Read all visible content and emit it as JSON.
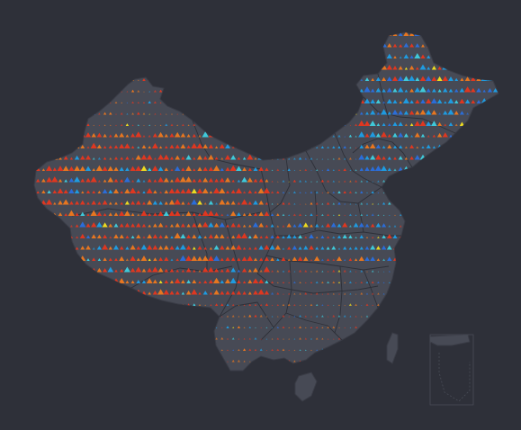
{
  "map": {
    "region": "China",
    "background": "#2e3039",
    "land_color": "#474a55",
    "border_color": "#2b2d35",
    "marker_shape": "triangle",
    "marker_palette": [
      "#e8361e",
      "#f0781e",
      "#1e9fe8",
      "#2a6fe0",
      "#3fd0e0",
      "#f5e21e"
    ],
    "has_south_china_sea_inset": true,
    "has_legend": false,
    "has_title": false
  }
}
